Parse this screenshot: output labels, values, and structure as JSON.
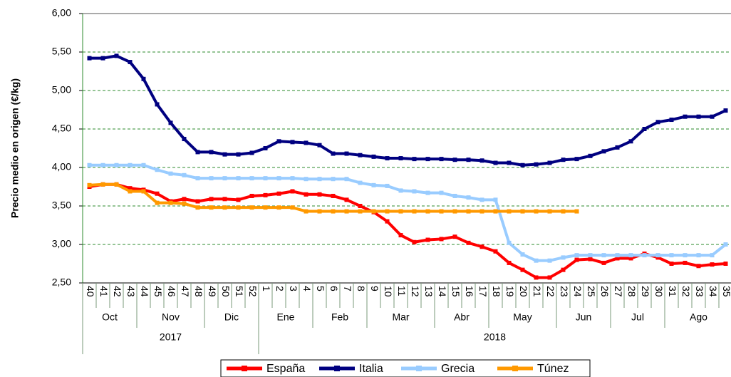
{
  "chart_data": {
    "type": "line",
    "y_label": "Precio medio en origen (€/kg)",
    "categories": [
      "40",
      "41",
      "42",
      "43",
      "44",
      "45",
      "46",
      "47",
      "48",
      "49",
      "50",
      "51",
      "52",
      "1",
      "2",
      "3",
      "4",
      "5",
      "6",
      "7",
      "8",
      "9",
      "10",
      "11",
      "12",
      "13",
      "14",
      "15",
      "16",
      "17",
      "18",
      "19",
      "20",
      "21",
      "22",
      "23",
      "24",
      "25",
      "26",
      "27",
      "28",
      "29",
      "30",
      "31",
      "32",
      "33",
      "34",
      "35"
    ],
    "month_groups": [
      {
        "label": "Oct",
        "size": 4
      },
      {
        "label": "Nov",
        "size": 5
      },
      {
        "label": "Dic",
        "size": 4
      },
      {
        "label": "Ene",
        "size": 4
      },
      {
        "label": "Feb",
        "size": 4
      },
      {
        "label": "Mar",
        "size": 5
      },
      {
        "label": "Abr",
        "size": 4
      },
      {
        "label": "May",
        "size": 5
      },
      {
        "label": "Jun",
        "size": 4
      },
      {
        "label": "Jul",
        "size": 4
      },
      {
        "label": "Ago",
        "size": 5
      }
    ],
    "year_groups": [
      {
        "label": "2017",
        "size": 13
      },
      {
        "label": "2018",
        "size": 35
      }
    ],
    "series": [
      {
        "name": "España",
        "color": "#ff0000",
        "values": [
          3.75,
          3.78,
          3.78,
          3.73,
          3.71,
          3.66,
          3.56,
          3.59,
          3.56,
          3.59,
          3.59,
          3.58,
          3.63,
          3.64,
          3.66,
          3.69,
          3.65,
          3.65,
          3.63,
          3.58,
          3.5,
          3.42,
          3.3,
          3.12,
          3.03,
          3.06,
          3.07,
          3.1,
          3.02,
          2.97,
          2.91,
          2.76,
          2.67,
          2.57,
          2.57,
          2.67,
          2.8,
          2.81,
          2.76,
          2.82,
          2.82,
          2.88,
          2.83,
          2.75,
          2.76,
          2.72,
          2.74,
          2.75
        ]
      },
      {
        "name": "Italia",
        "color": "#000080",
        "values": [
          5.42,
          5.42,
          5.45,
          5.37,
          5.15,
          4.82,
          4.58,
          4.37,
          4.2,
          4.2,
          4.17,
          4.17,
          4.19,
          4.25,
          4.34,
          4.33,
          4.32,
          4.29,
          4.18,
          4.18,
          4.16,
          4.14,
          4.12,
          4.12,
          4.11,
          4.11,
          4.11,
          4.1,
          4.1,
          4.09,
          4.06,
          4.06,
          4.03,
          4.04,
          4.06,
          4.1,
          4.11,
          4.15,
          4.21,
          4.26,
          4.34,
          4.5,
          4.59,
          4.62,
          4.66,
          4.66,
          4.66,
          4.74
        ]
      },
      {
        "name": "Grecia",
        "color": "#99ccff",
        "values": [
          4.03,
          4.03,
          4.03,
          4.03,
          4.03,
          3.97,
          3.92,
          3.9,
          3.86,
          3.86,
          3.86,
          3.86,
          3.86,
          3.86,
          3.86,
          3.86,
          3.85,
          3.85,
          3.85,
          3.85,
          3.8,
          3.77,
          3.76,
          3.7,
          3.69,
          3.67,
          3.67,
          3.63,
          3.61,
          3.58,
          3.58,
          3.02,
          2.87,
          2.79,
          2.79,
          2.83,
          2.86,
          2.86,
          2.86,
          2.86,
          2.86,
          2.86,
          2.86,
          2.86,
          2.86,
          2.86,
          2.86,
          3.0
        ]
      },
      {
        "name": "Túnez",
        "color": "#ff9900",
        "values": [
          3.77,
          3.78,
          3.78,
          3.69,
          3.69,
          3.54,
          3.54,
          3.53,
          3.48,
          3.48,
          3.48,
          3.48,
          3.48,
          3.48,
          3.48,
          3.48,
          3.43,
          3.43,
          3.43,
          3.43,
          3.43,
          3.43,
          3.43,
          3.43,
          3.43,
          3.43,
          3.43,
          3.43,
          3.43,
          3.43,
          3.43,
          3.43,
          3.43,
          3.43,
          3.43,
          3.43,
          3.43,
          null,
          null,
          null,
          null,
          null,
          null,
          null,
          null,
          null,
          null,
          null
        ]
      }
    ],
    "ylim": [
      2.5,
      6
    ],
    "yticks": [
      {
        "value": 2.5,
        "label": "2,50"
      },
      {
        "value": 3,
        "label": "3,00"
      },
      {
        "value": 3.5,
        "label": "3,50"
      },
      {
        "value": 4,
        "label": "4,00"
      },
      {
        "value": 4.5,
        "label": "4,50"
      },
      {
        "value": 5,
        "label": "5,00"
      },
      {
        "value": 5.5,
        "label": "5,50"
      },
      {
        "value": 6,
        "label": "6,00"
      }
    ],
    "grid": true,
    "legend": "bottom"
  }
}
